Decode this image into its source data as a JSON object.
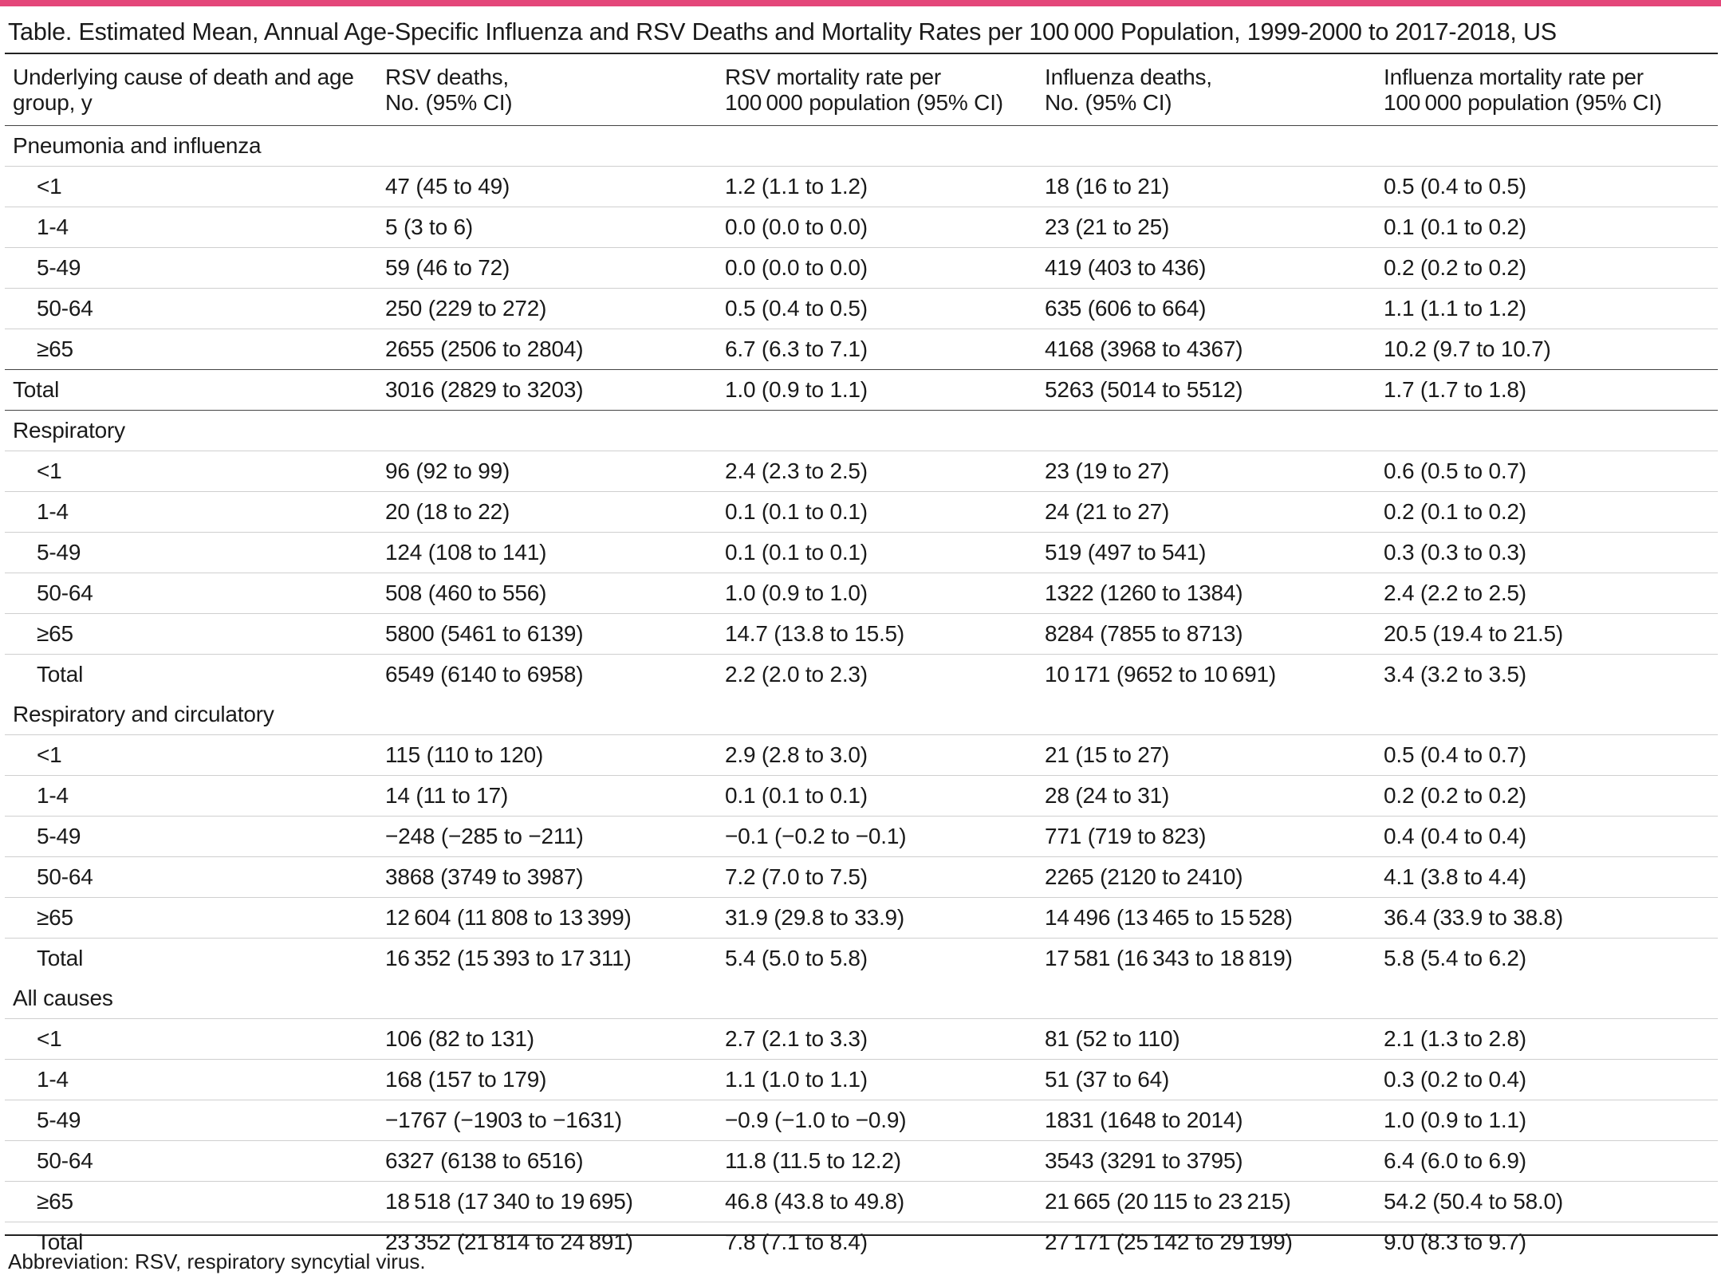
{
  "title": "Table. Estimated Mean, Annual Age-Specific Influenza and RSV Deaths and Mortality Rates per 100 000 Population, 1999-2000 to 2017-2018, US",
  "columns": [
    [
      "Underlying cause of death and age",
      "group, y"
    ],
    [
      "RSV deaths,",
      "No. (95% CI)"
    ],
    [
      "RSV mortality rate per",
      "100 000 population (95% CI)"
    ],
    [
      "Influenza deaths,",
      "No. (95% CI)"
    ],
    [
      "Influenza mortality rate per",
      "100 000 population (95% CI)"
    ]
  ],
  "sections": [
    {
      "name": "Pneumonia and influenza",
      "rows": [
        [
          "<1",
          "47 (45 to 49)",
          "1.2 (1.1 to 1.2)",
          "18 (16 to 21)",
          "0.5 (0.4 to 0.5)"
        ],
        [
          "1-4",
          "5 (3 to 6)",
          "0.0 (0.0 to 0.0)",
          "23 (21 to 25)",
          "0.1 (0.1 to 0.2)"
        ],
        [
          "5-49",
          "59 (46 to 72)",
          "0.0 (0.0 to 0.0)",
          "419 (403 to 436)",
          "0.2 (0.2 to 0.2)"
        ],
        [
          "50-64",
          "250 (229 to 272)",
          "0.5 (0.4 to 0.5)",
          "635 (606 to 664)",
          "1.1 (1.1 to 1.2)"
        ],
        [
          "≥65",
          "2655 (2506 to 2804)",
          "6.7 (6.3 to 7.1)",
          "4168 (3968 to 4367)",
          "10.2 (9.7 to 10.7)"
        ],
        [
          "Total",
          "3016 (2829 to 3203)",
          "1.0 (0.9 to 1.1)",
          "5263 (5014 to 5512)",
          "1.7 (1.7 to 1.8)"
        ]
      ]
    },
    {
      "name": "Respiratory",
      "rows": [
        [
          "<1",
          "96 (92 to 99)",
          "2.4 (2.3 to 2.5)",
          "23 (19 to 27)",
          "0.6 (0.5 to 0.7)"
        ],
        [
          "1-4",
          "20 (18 to 22)",
          "0.1 (0.1 to 0.1)",
          "24 (21 to 27)",
          "0.2 (0.1 to 0.2)"
        ],
        [
          "5-49",
          "124 (108 to 141)",
          "0.1 (0.1 to 0.1)",
          "519 (497 to 541)",
          "0.3 (0.3 to 0.3)"
        ],
        [
          "50-64",
          "508 (460 to 556)",
          "1.0 (0.9 to 1.0)",
          "1322 (1260 to 1384)",
          "2.4 (2.2 to 2.5)"
        ],
        [
          "≥65",
          "5800 (5461 to 6139)",
          "14.7 (13.8 to 15.5)",
          "8284 (7855 to 8713)",
          "20.5 (19.4 to 21.5)"
        ],
        [
          "Total",
          "6549 (6140 to 6958)",
          "2.2 (2.0 to 2.3)",
          "10 171 (9652 to 10 691)",
          "3.4 (3.2 to 3.5)"
        ]
      ]
    },
    {
      "name": "Respiratory and circulatory",
      "rows": [
        [
          "<1",
          "115 (110 to 120)",
          "2.9 (2.8 to 3.0)",
          "21 (15 to 27)",
          "0.5 (0.4 to 0.7)"
        ],
        [
          "1-4",
          "14 (11 to 17)",
          "0.1 (0.1 to 0.1)",
          "28 (24 to 31)",
          "0.2 (0.2 to 0.2)"
        ],
        [
          "5-49",
          "−248 (−285 to −211)",
          "−0.1 (−0.2 to −0.1)",
          "771 (719 to 823)",
          "0.4 (0.4 to 0.4)"
        ],
        [
          "50-64",
          "3868 (3749 to 3987)",
          "7.2 (7.0 to 7.5)",
          "2265 (2120 to 2410)",
          "4.1 (3.8 to 4.4)"
        ],
        [
          "≥65",
          "12 604 (11 808 to 13 399)",
          "31.9 (29.8 to 33.9)",
          "14 496 (13 465 to 15 528)",
          "36.4 (33.9 to 38.8)"
        ],
        [
          "Total",
          "16 352 (15 393 to 17 311)",
          "5.4 (5.0 to 5.8)",
          "17 581 (16 343 to 18 819)",
          "5.8 (5.4 to 6.2)"
        ]
      ]
    },
    {
      "name": "All causes",
      "rows": [
        [
          "<1",
          "106 (82 to 131)",
          "2.7 (2.1 to 3.3)",
          "81 (52 to 110)",
          "2.1 (1.3 to 2.8)"
        ],
        [
          "1-4",
          "168 (157 to 179)",
          "1.1 (1.0 to 1.1)",
          "51 (37 to 64)",
          "0.3 (0.2 to 0.4)"
        ],
        [
          "5-49",
          "−1767 (−1903 to −1631)",
          "−0.9 (−1.0 to −0.9)",
          "1831 (1648 to 2014)",
          "1.0 (0.9 to 1.1)"
        ],
        [
          "50-64",
          "6327 (6138 to 6516)",
          "11.8 (11.5 to 12.2)",
          "3543 (3291 to 3795)",
          "6.4 (6.0 to 6.9)"
        ],
        [
          "≥65",
          "18 518 (17 340 to 19 695)",
          "46.8 (43.8 to 49.8)",
          "21 665 (20 115 to 23 215)",
          "54.2 (50.4 to 58.0)"
        ],
        [
          "Total",
          "23 352 (21 814 to 24 891)",
          "7.8 (7.1 to 8.4)",
          "27 171 (25 142 to 29 199)",
          "9.0 (8.3 to 9.7)"
        ]
      ]
    }
  ],
  "footnote": "Abbreviation: RSV, respiratory syncytial virus.",
  "colors": {
    "accent_rule": "#e4477a",
    "text": "#1a1a1a",
    "row_divider": "#cfcfcf"
  }
}
